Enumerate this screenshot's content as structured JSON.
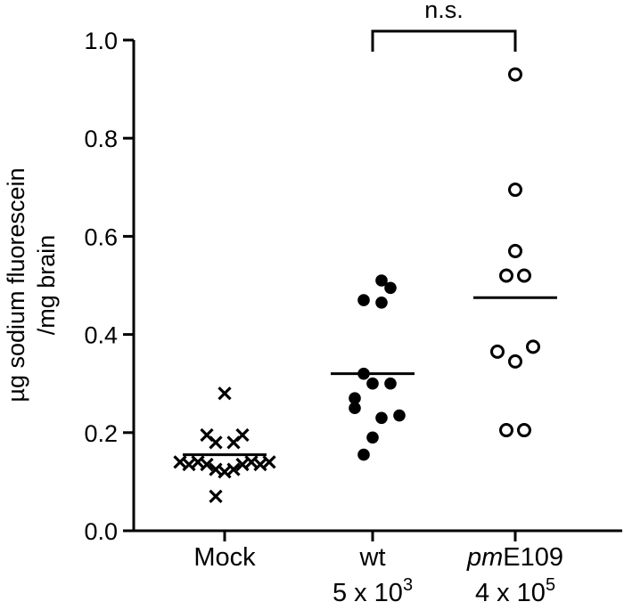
{
  "chart_data": {
    "type": "scatter",
    "ylabel_lines": [
      "µg sodium fluorescein",
      "/mg brain"
    ],
    "ylim": [
      0,
      1.0
    ],
    "yticks": [
      "0.0",
      "0.2",
      "0.4",
      "0.6",
      "0.8",
      "1.0"
    ],
    "grid": false,
    "groups": [
      {
        "label_lines": [
          {
            "text": "Mock"
          }
        ],
        "marker": "x",
        "mean": 0.155,
        "points": [
          {
            "offset": 0,
            "y": 0.28
          },
          {
            "offset": -1,
            "y": 0.195
          },
          {
            "offset": 1,
            "y": 0.195
          },
          {
            "offset": -0.5,
            "y": 0.18
          },
          {
            "offset": 0.5,
            "y": 0.18
          },
          {
            "offset": -2.5,
            "y": 0.14
          },
          {
            "offset": -1.5,
            "y": 0.14
          },
          {
            "offset": 1.5,
            "y": 0.14
          },
          {
            "offset": 2.5,
            "y": 0.14
          },
          {
            "offset": -2,
            "y": 0.135
          },
          {
            "offset": -1,
            "y": 0.135
          },
          {
            "offset": 1,
            "y": 0.135
          },
          {
            "offset": 2,
            "y": 0.135
          },
          {
            "offset": -0.5,
            "y": 0.125
          },
          {
            "offset": 0.5,
            "y": 0.125
          },
          {
            "offset": 0,
            "y": 0.12
          },
          {
            "offset": -0.5,
            "y": 0.07
          }
        ]
      },
      {
        "label_lines": [
          {
            "text": "wt"
          },
          {
            "text": "5 x 10",
            "sup": "3"
          }
        ],
        "marker": "filled-circle",
        "mean": 0.32,
        "points": [
          {
            "offset": 0.5,
            "y": 0.51
          },
          {
            "offset": 1,
            "y": 0.495
          },
          {
            "offset": -0.5,
            "y": 0.47
          },
          {
            "offset": 0.5,
            "y": 0.465
          },
          {
            "offset": -0.5,
            "y": 0.32
          },
          {
            "offset": 0,
            "y": 0.3
          },
          {
            "offset": 1,
            "y": 0.3
          },
          {
            "offset": -1,
            "y": 0.27
          },
          {
            "offset": -1,
            "y": 0.25
          },
          {
            "offset": 1.5,
            "y": 0.235
          },
          {
            "offset": 0.5,
            "y": 0.23
          },
          {
            "offset": 0,
            "y": 0.19
          },
          {
            "offset": -0.5,
            "y": 0.155
          }
        ]
      },
      {
        "label_lines": [
          {
            "text": "E109",
            "italic_prefix": "pm"
          },
          {
            "text": "4 x 10",
            "sup": "5"
          }
        ],
        "marker": "open-circle",
        "mean": 0.475,
        "points": [
          {
            "offset": 0,
            "y": 0.93
          },
          {
            "offset": 0,
            "y": 0.695
          },
          {
            "offset": 0,
            "y": 0.57
          },
          {
            "offset": -0.5,
            "y": 0.52
          },
          {
            "offset": 0.5,
            "y": 0.52
          },
          {
            "offset": -1,
            "y": 0.365
          },
          {
            "offset": 1,
            "y": 0.375
          },
          {
            "offset": 0,
            "y": 0.345
          },
          {
            "offset": -0.5,
            "y": 0.205
          },
          {
            "offset": 0.5,
            "y": 0.205
          }
        ]
      }
    ],
    "significance": {
      "from_group": 1,
      "to_group": 2,
      "label": "n.s."
    }
  }
}
